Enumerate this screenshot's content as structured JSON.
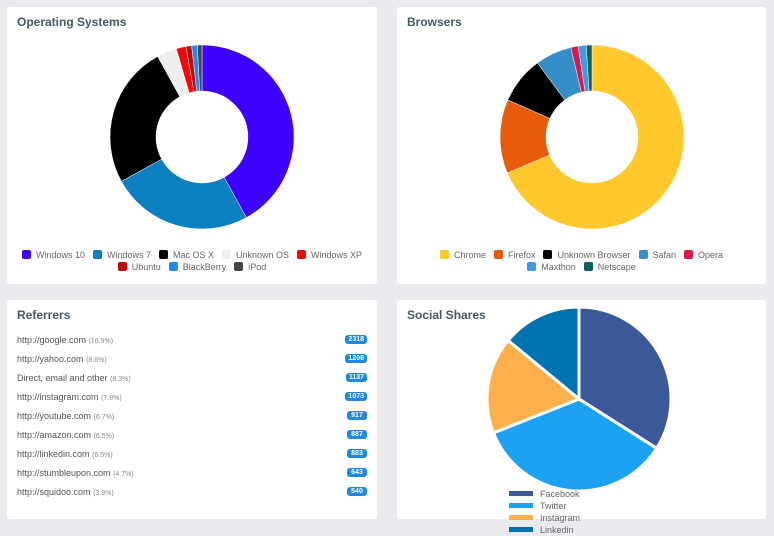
{
  "chart_data": [
    {
      "type": "pie",
      "subtype": "doughnut",
      "title": "Operating Systems",
      "categories": [
        "Windows 10",
        "Windows 7",
        "Mac OS X",
        "Unknown OS",
        "Windows XP",
        "Ubuntu",
        "BlackBerry",
        "iPod"
      ],
      "values": [
        42,
        25,
        25,
        3.5,
        1.7,
        1,
        1,
        0.8
      ],
      "colors": [
        "#3d00ff",
        "#0a80c0",
        "#000000",
        "#eeeeee",
        "#ee0a0a",
        "#c20a0a",
        "#1e8cf0",
        "#444444"
      ],
      "legend": "bottom"
    },
    {
      "type": "pie",
      "subtype": "doughnut",
      "title": "Browsers",
      "categories": [
        "Chrome",
        "Firefox",
        "Unknown Browser",
        "Safari",
        "Opera",
        "Maxthon",
        "Netscape"
      ],
      "values": [
        68.6,
        13,
        8.3,
        6.4,
        1.3,
        1.4,
        1
      ],
      "colors": [
        "#ffc82c",
        "#e65c0a",
        "#000000",
        "#368ec9",
        "#d61a4c",
        "#3c9be6",
        "#0f5f5a"
      ],
      "legend": "bottom"
    },
    {
      "type": "pie",
      "title": "Social Shares",
      "categories": [
        "Facebook",
        "Twitter",
        "Instagram",
        "Linkedin"
      ],
      "values": [
        34,
        35,
        17,
        14
      ],
      "colors": [
        "#3b5998",
        "#1da1f2",
        "#fcaf4a",
        "#0073b1"
      ],
      "legend": "bottom"
    }
  ],
  "referrers": {
    "title": "Referrers",
    "items": [
      {
        "url": "http://google.com",
        "pct": "(16.9%)",
        "count": "2318"
      },
      {
        "url": "http://yahoo.com",
        "pct": "(8.8%)",
        "count": "1208"
      },
      {
        "url": "Direct, email and other",
        "pct": "(8.3%)",
        "count": "1137"
      },
      {
        "url": "http://instagram.com",
        "pct": "(7.8%)",
        "count": "1073"
      },
      {
        "url": "http://youtube.com",
        "pct": "(6.7%)",
        "count": "917"
      },
      {
        "url": "http://amazon.com",
        "pct": "(6.5%)",
        "count": "887"
      },
      {
        "url": "http://linkedin.com",
        "pct": "(6.5%)",
        "count": "883"
      },
      {
        "url": "http://stumbleupon.com",
        "pct": "(4.7%)",
        "count": "643"
      },
      {
        "url": "http://squidoo.com",
        "pct": "(3.9%)",
        "count": "540"
      }
    ]
  }
}
